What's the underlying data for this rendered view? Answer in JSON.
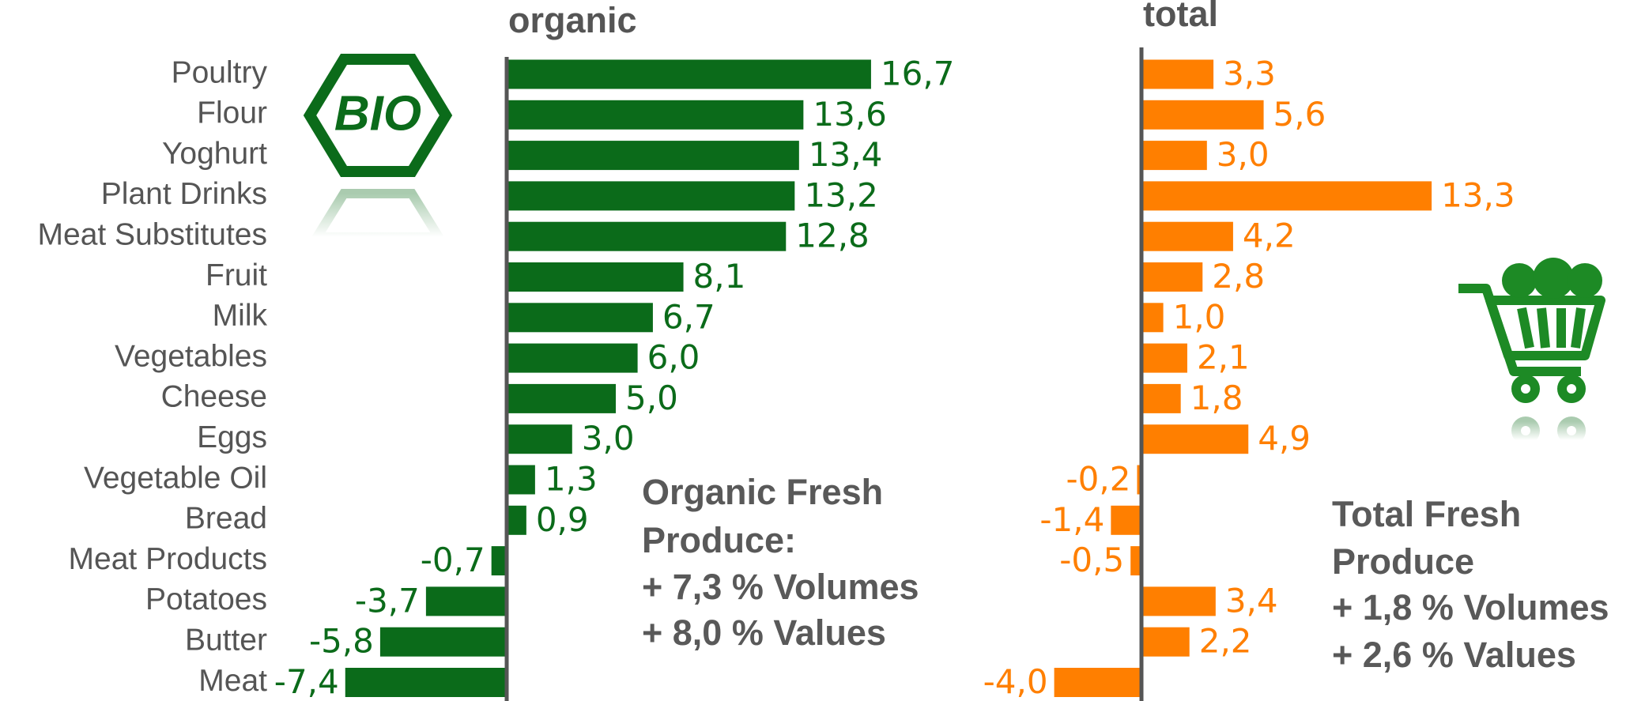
{
  "chart_data": [
    {
      "type": "bar",
      "orientation": "horizontal",
      "title": "organic",
      "logo": "BIO",
      "color": "#0b6b1a",
      "categories": [
        "Poultry",
        "Flour",
        "Yoghurt",
        "Plant Drinks",
        "Meat Substitutes",
        "Fruit",
        "Milk",
        "Vegetables",
        "Cheese",
        "Eggs",
        "Vegetable Oil",
        "Bread",
        "Meat Products",
        "Potatoes",
        "Butter",
        "Meat"
      ],
      "values": [
        16.7,
        13.6,
        13.4,
        13.2,
        12.8,
        8.1,
        6.7,
        6.0,
        5.0,
        3.0,
        1.3,
        0.9,
        -0.7,
        -3.7,
        -5.8,
        -7.4
      ],
      "value_labels": [
        "16,7",
        "13,6",
        "13,4",
        "13,2",
        "12,8",
        "8,1",
        "6,7",
        "6,0",
        "5,0",
        "3,0",
        "1,3",
        "0,9",
        "-0,7",
        "-3,7",
        "-5,8",
        "-7,4"
      ],
      "annotations": [
        "Organic Fresh",
        "Produce:",
        "+ 7,3 % Volumes",
        "+ 8,0 % Values"
      ]
    },
    {
      "type": "bar",
      "orientation": "horizontal",
      "title": "total",
      "color": "#ff7f00",
      "values": [
        3.3,
        5.6,
        3.0,
        13.3,
        4.2,
        2.8,
        1.0,
        2.1,
        1.8,
        4.9,
        -0.2,
        -1.4,
        -0.5,
        3.4,
        2.2,
        -4.0
      ],
      "value_labels": [
        "3,3",
        "5,6",
        "3,0",
        "13,3",
        "4,2",
        "2,8",
        "1,0",
        "2,1",
        "1,8",
        "4,9",
        "-0,2",
        "-1,4",
        "-0,5",
        "3,4",
        "2,2",
        "-4,0"
      ],
      "annotations": [
        "Total Fresh",
        "Produce",
        "+ 1,8 % Volumes",
        "+ 2,6 % Values"
      ]
    }
  ]
}
